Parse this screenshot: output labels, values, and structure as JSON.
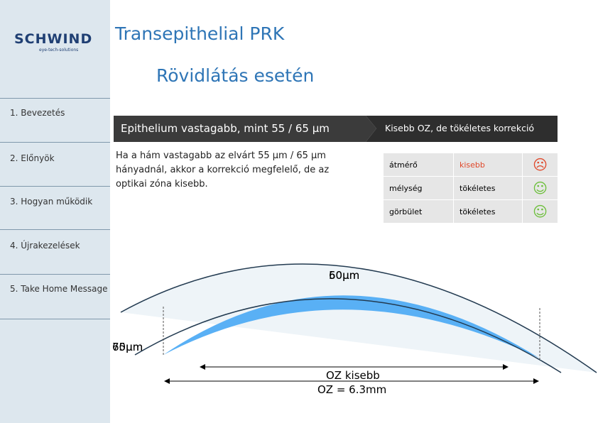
{
  "logo": {
    "name": "SCHWIND",
    "tagline": "eye-tech-solutions"
  },
  "header": {
    "title": "Transepithelial PRK",
    "subtitle": "Rövidlátás esetén"
  },
  "nav": [
    "1. Bevezetés",
    "2. Előnyök",
    "3. Hogyan működik",
    "4. Újrakezelések",
    "5. Take Home Message"
  ],
  "banner": {
    "left": "Epithelium vastagabb, mint 55 / 65 µm",
    "right": "Kisebb OZ, de tökéletes korrekció"
  },
  "paragraph": "Ha a hám vastagabb az elvárt 55 µm / 65 µm hányadnál, akkor a korrekció megfelelő, de az optikai zóna kisebb.",
  "table": {
    "rows": [
      [
        "átmérő",
        "kisebb"
      ],
      [
        "mélység",
        "tökéletes"
      ],
      [
        "görbület",
        "tökéletes"
      ]
    ]
  },
  "diagram": {
    "top_labels": [
      "50µm",
      "60µm"
    ],
    "side_labels": [
      "70µm",
      "65µm"
    ],
    "oz_small": "OZ kisebb",
    "oz": "OZ = 6.3mm"
  }
}
